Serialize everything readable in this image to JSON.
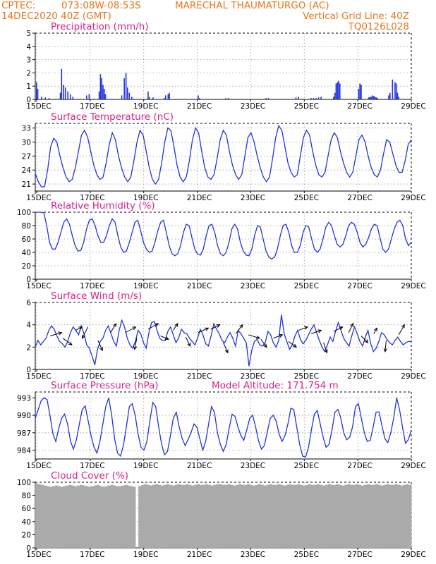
{
  "header": {
    "source": "CPTEC:",
    "coords": "073:08W-08:53S",
    "station": "MARECHAL THAUMATURGO (AC)",
    "run": "14DEC2020 40Z (GMT)",
    "grid_note": "Vertical Grid Line: 40Z",
    "code": "TQ0126L028"
  },
  "x_ticks": [
    "15DEC",
    "17DEC",
    "19DEC",
    "21DEC",
    "23DEC",
    "25DEC",
    "27DEC",
    "29DEC"
  ],
  "colors": {
    "line": "#2233dd",
    "header": "#e8761c",
    "title": "#e0208a",
    "cloud": "#aaaaaa"
  },
  "chart_data": [
    {
      "id": "precip",
      "type": "bar",
      "title": "Precipitation (mm/h)",
      "ylim": [
        0,
        5
      ],
      "yticks": [
        "0",
        "1",
        "2",
        "3",
        "4",
        "5"
      ],
      "bars": [
        [
          14.05,
          1.3
        ],
        [
          14.1,
          0.8
        ],
        [
          14.25,
          0.2
        ],
        [
          14.4,
          0.15
        ],
        [
          14.55,
          0.1
        ],
        [
          15.0,
          0.5
        ],
        [
          15.05,
          2.3
        ],
        [
          15.12,
          1.1
        ],
        [
          15.2,
          0.9
        ],
        [
          15.3,
          0.6
        ],
        [
          15.4,
          0.4
        ],
        [
          15.5,
          0.2
        ],
        [
          16.05,
          0.3
        ],
        [
          16.15,
          0.4
        ],
        [
          16.55,
          0.6
        ],
        [
          16.6,
          1.9
        ],
        [
          16.65,
          1.6
        ],
        [
          16.7,
          1.1
        ],
        [
          16.75,
          0.8
        ],
        [
          16.8,
          0.4
        ],
        [
          17.45,
          0.3
        ],
        [
          17.55,
          1.6
        ],
        [
          17.62,
          2.0
        ],
        [
          17.68,
          0.9
        ],
        [
          17.75,
          0.5
        ],
        [
          17.85,
          0.2
        ],
        [
          18.5,
          0.6
        ],
        [
          18.55,
          0.2
        ],
        [
          18.7,
          0.15
        ],
        [
          19.15,
          0.1
        ],
        [
          19.2,
          0.3
        ],
        [
          19.3,
          0.4
        ],
        [
          19.35,
          0.5
        ],
        [
          20.5,
          0.3
        ],
        [
          20.55,
          0.1
        ],
        [
          21.6,
          0.1
        ],
        [
          21.7,
          0.1
        ],
        [
          23.2,
          0.1
        ],
        [
          23.3,
          0.1
        ],
        [
          24.4,
          0.15
        ],
        [
          24.5,
          0.2
        ],
        [
          25.0,
          0.1
        ],
        [
          25.1,
          0.1
        ],
        [
          25.2,
          0.1
        ],
        [
          25.3,
          0.15
        ],
        [
          25.4,
          0.2
        ],
        [
          25.9,
          0.2
        ],
        [
          25.95,
          0.5
        ],
        [
          26.0,
          1.2
        ],
        [
          26.05,
          1.3
        ],
        [
          26.1,
          1.4
        ],
        [
          26.15,
          1.2
        ],
        [
          26.9,
          0.8
        ],
        [
          26.95,
          1.2
        ],
        [
          27.0,
          1.1
        ],
        [
          27.3,
          0.15
        ],
        [
          27.35,
          0.2
        ],
        [
          27.4,
          0.2
        ],
        [
          27.45,
          0.3
        ],
        [
          27.5,
          0.25
        ],
        [
          27.55,
          0.2
        ],
        [
          27.6,
          0.15
        ],
        [
          27.65,
          0.1
        ],
        [
          28.1,
          0.3
        ],
        [
          28.15,
          0.5
        ],
        [
          28.25,
          1.5
        ],
        [
          28.35,
          1.3
        ],
        [
          28.4,
          1.2
        ],
        [
          28.45,
          0.5
        ],
        [
          28.5,
          0.2
        ]
      ]
    },
    {
      "id": "temp",
      "type": "line",
      "title": "Surface Temperature (nC)",
      "ylim": [
        19.5,
        34
      ],
      "yticks": [
        "21",
        "24",
        "27",
        "30",
        "33"
      ],
      "ytick_values": [
        21,
        24,
        27,
        30,
        33
      ],
      "y": [
        23.2,
        21.5,
        20.4,
        20.4,
        24,
        29,
        30.8,
        30,
        27,
        24.5,
        22.5,
        21.5,
        22,
        24.5,
        28,
        31.5,
        32.5,
        31,
        28,
        25,
        23,
        22,
        22.5,
        25.5,
        29.5,
        32,
        30.5,
        27,
        24.5,
        22.5,
        21.5,
        22.5,
        26,
        30,
        32.5,
        31.5,
        28,
        24.5,
        22,
        21,
        22,
        25.5,
        30,
        33,
        32.5,
        29,
        25,
        22.5,
        21.5,
        22.5,
        26,
        30.5,
        33,
        32,
        28,
        24.5,
        22.5,
        22,
        23,
        26.5,
        30.5,
        32.5,
        31.5,
        28,
        25,
        23,
        22,
        23,
        27,
        31,
        32,
        30,
        27,
        24.5,
        22.5,
        21.5,
        22.5,
        26.5,
        31,
        33.5,
        32.5,
        29,
        25.5,
        23.5,
        22.5,
        23,
        27,
        31,
        32.5,
        31.5,
        28,
        25,
        23,
        22.5,
        23.5,
        27,
        30.5,
        32,
        31,
        28,
        25.5,
        23.5,
        22.5,
        23.5,
        27,
        30.5,
        31.5,
        30,
        27,
        24.5,
        23,
        22.5,
        24,
        27.5,
        30.5,
        30,
        27.5,
        25,
        23.5,
        23.5,
        26,
        29.5,
        30.5
      ]
    },
    {
      "id": "rh",
      "type": "line",
      "title": "Relative Humidity (%)",
      "ylim": [
        0,
        100
      ],
      "yticks": [
        "0",
        "20",
        "40",
        "60",
        "80",
        "100"
      ],
      "ytick_values": [
        0,
        20,
        40,
        60,
        80,
        100
      ],
      "y": [
        100,
        100,
        100,
        99,
        80,
        55,
        45,
        45,
        55,
        70,
        85,
        90,
        82,
        65,
        50,
        42,
        43,
        55,
        75,
        88,
        90,
        80,
        65,
        55,
        55,
        65,
        80,
        90,
        85,
        65,
        48,
        40,
        42,
        55,
        70,
        85,
        88,
        72,
        55,
        45,
        40,
        42,
        55,
        72,
        85,
        88,
        70,
        50,
        38,
        35,
        38,
        50,
        70,
        82,
        80,
        62,
        45,
        37,
        36,
        45,
        65,
        80,
        82,
        70,
        50,
        38,
        35,
        40,
        55,
        75,
        82,
        75,
        55,
        42,
        36,
        35,
        45,
        65,
        80,
        78,
        60,
        42,
        33,
        30,
        33,
        45,
        65,
        80,
        82,
        70,
        50,
        40,
        40,
        50,
        70,
        80,
        78,
        60,
        45,
        40,
        45,
        60,
        78,
        85,
        80,
        65,
        52,
        48,
        52,
        65,
        80,
        85,
        82,
        70,
        55,
        48,
        52,
        62,
        75,
        82,
        80,
        62,
        45,
        40,
        45,
        60,
        75,
        85,
        88,
        80,
        60,
        50,
        55
      ]
    },
    {
      "id": "wind",
      "type": "line",
      "title": "Surface Wind (m/s)",
      "ylim": [
        0,
        6
      ],
      "yticks": [
        "0",
        "2",
        "4",
        "6"
      ],
      "ytick_values": [
        0,
        2,
        4,
        6
      ],
      "y": [
        2,
        2.6,
        2.2,
        2.5,
        2.8,
        3.5,
        3.9,
        3.6,
        3,
        2.5,
        2.3,
        2,
        2.5,
        3.3,
        3.8,
        3.5,
        3.1,
        3.9,
        3.2,
        2.2,
        1.9,
        1.2,
        0.4,
        1.8,
        2.5,
        2.8,
        3.5,
        3.9,
        3.2,
        2.5,
        2.1,
        3.5,
        4.4,
        3.8,
        2.8,
        2.2,
        1.9,
        2.5,
        3.5,
        3.2,
        2.4,
        1.9,
        3.3,
        4.2,
        4.3,
        3.5,
        2.8,
        2.6,
        2.6,
        3.4,
        3.8,
        3.1,
        2.4,
        2.8,
        3.6,
        3.3,
        3.2,
        2.8,
        2.5,
        2.2,
        2.8,
        3.6,
        3.1,
        2.3,
        2.1,
        3,
        4.1,
        3.6,
        3.2,
        2.6,
        2.4,
        2.9,
        3.3,
        2.8,
        2.1,
        3.5,
        3.2,
        2.8,
        2.4,
        0.3,
        1.7,
        2.5,
        2.7,
        2.2,
        2.1,
        2.4,
        3.4,
        3.1,
        2.4,
        2,
        2.6,
        4.9,
        3.2,
        2.5,
        1.8,
        2.2,
        3,
        3.5,
        2.7,
        2.3,
        2.6,
        3.1,
        3.6,
        4,
        3.3,
        2.6,
        2,
        1.6,
        2.2,
        2.9,
        2.5,
        3.4,
        4.2,
        3.5,
        2.8,
        2.4,
        2.1,
        3,
        3.8,
        3.2,
        2.5,
        2.1,
        2.9,
        3.5,
        2.3,
        1.6,
        1.9,
        2.5,
        3.3,
        3.1,
        2.7,
        2.4,
        2.2,
        2.6,
        2.9,
        2.5,
        2.2,
        2.4,
        2.5,
        2.5
      ]
    },
    {
      "id": "pressure",
      "type": "line",
      "title": "Surface Pressure (hPa)",
      "annotation": "Model Altitude: 171.754 m",
      "ylim": [
        982.5,
        994
      ],
      "yticks": [
        "984",
        "987",
        "990",
        "993"
      ],
      "ytick_values": [
        984,
        987,
        990,
        993
      ],
      "y": [
        989.5,
        991,
        992.5,
        993,
        992.7,
        990,
        986.8,
        985.5,
        987.8,
        989.5,
        990.2,
        988.5,
        985.5,
        984.2,
        985.8,
        988.5,
        991,
        991.6,
        989,
        986.5,
        984.5,
        983.5,
        985.5,
        988.5,
        991.5,
        993,
        990,
        986,
        983.5,
        983,
        984.8,
        988,
        991.5,
        992,
        990,
        986.8,
        984.5,
        984,
        985.5,
        989,
        992.2,
        991.5,
        988,
        985,
        983.2,
        983.8,
        986.5,
        989.5,
        990.5,
        988,
        986,
        984.8,
        985.8,
        987,
        988.5,
        988,
        986,
        984,
        985.5,
        988.5,
        991.5,
        990.5,
        987,
        985,
        983.8,
        985,
        987.8,
        990.2,
        989.8,
        988,
        986.5,
        985.7,
        987.5,
        989.5,
        990,
        988,
        985.6,
        984.2,
        984.8,
        987.2,
        989.5,
        990,
        989,
        986.8,
        985.5,
        986.5,
        988.5,
        991.2,
        991,
        988,
        985,
        983,
        982.8,
        984.5,
        987.5,
        990.2,
        990.8,
        988.5,
        986.2,
        984.5,
        985,
        987.5,
        990.5,
        991,
        989.5,
        987,
        985.8,
        986.2,
        988,
        991.5,
        992,
        989.5,
        987,
        985.5,
        985.7,
        988,
        990.5,
        990.6,
        988.2,
        986,
        985.3,
        987,
        989.5,
        993,
        991,
        988,
        985.2,
        985.8,
        987.5
      ]
    },
    {
      "id": "cloud",
      "type": "area",
      "title": "Cloud Cover (%)",
      "ylim": [
        0,
        100
      ],
      "yticks": [
        "0",
        "20",
        "40",
        "60",
        "80",
        "100"
      ],
      "ytick_values": [
        0,
        20,
        40,
        60,
        80,
        100
      ],
      "y": [
        98,
        97,
        96,
        95,
        94,
        93,
        94,
        95,
        94,
        93,
        94,
        95,
        96,
        95,
        94,
        95,
        96,
        95,
        94,
        93,
        94,
        95,
        96,
        94,
        93,
        94,
        95,
        96,
        95,
        94,
        94,
        95,
        96,
        95,
        94,
        93,
        0,
        94,
        96,
        97,
        96,
        95,
        96,
        97,
        96,
        95,
        96,
        97,
        96,
        95,
        96,
        97,
        96,
        96,
        97,
        96,
        95,
        96,
        97,
        96,
        96,
        97,
        96,
        95,
        96,
        97,
        97,
        96,
        96,
        97,
        96,
        95,
        96,
        97,
        96,
        96,
        97,
        96,
        95,
        96,
        97,
        96,
        95,
        96,
        97,
        96,
        96,
        97,
        96,
        95,
        96,
        97,
        96,
        96,
        97,
        96,
        95,
        96,
        97,
        96,
        96,
        97,
        96,
        95,
        96,
        97,
        96,
        96,
        97,
        96,
        95,
        96,
        97,
        96,
        96,
        97,
        96,
        95,
        96,
        97,
        96,
        96,
        97,
        96,
        95,
        96,
        97,
        96,
        96,
        97,
        96,
        95,
        96,
        97,
        96
      ]
    }
  ],
  "wind_arrows": [
    [
      14.6,
      3.0,
      1.0,
      0.3
    ],
    [
      15.1,
      2.8,
      0.8,
      -0.6
    ],
    [
      15.6,
      3.5,
      0.6,
      0.3
    ],
    [
      16.1,
      3.8,
      -0.5,
      -1.0
    ],
    [
      16.5,
      2.6,
      0.4,
      -0.9
    ],
    [
      17.0,
      3.3,
      0.5,
      0.8
    ],
    [
      17.6,
      3.3,
      0.9,
      0.5
    ],
    [
      18.05,
      2.8,
      -0.2,
      -1.0
    ],
    [
      18.5,
      3.6,
      0.9,
      0.5
    ],
    [
      19.0,
      3.0,
      0.7,
      -0.3
    ],
    [
      19.5,
      3.5,
      0.4,
      0.6
    ],
    [
      20.0,
      2.9,
      0.4,
      -0.8
    ],
    [
      20.5,
      3.3,
      0.9,
      0.4
    ],
    [
      21.0,
      3.6,
      0.8,
      0.4
    ],
    [
      21.5,
      2.4,
      0.4,
      -0.9
    ],
    [
      22.0,
      3.2,
      0.6,
      0.8
    ],
    [
      22.5,
      3.1,
      1.0,
      -0.3
    ],
    [
      23.0,
      2.7,
      0.5,
      -0.7
    ],
    [
      23.5,
      2.8,
      0.8,
      0.3
    ],
    [
      24.1,
      2.5,
      0.7,
      -0.5
    ],
    [
      24.5,
      3.5,
      0.8,
      0.3
    ],
    [
      25.0,
      3.2,
      0.9,
      0.3
    ],
    [
      25.5,
      2.4,
      0.3,
      -0.9
    ],
    [
      25.9,
      3.4,
      0.8,
      0.4
    ],
    [
      26.5,
      3.3,
      0.4,
      0.8
    ],
    [
      27.0,
      3.0,
      0.6,
      -0.6
    ],
    [
      27.5,
      3.2,
      0.3,
      0.5
    ],
    [
      28.0,
      2.6,
      -0.1,
      -1.0
    ],
    [
      28.5,
      3.1,
      0.5,
      0.9
    ]
  ]
}
